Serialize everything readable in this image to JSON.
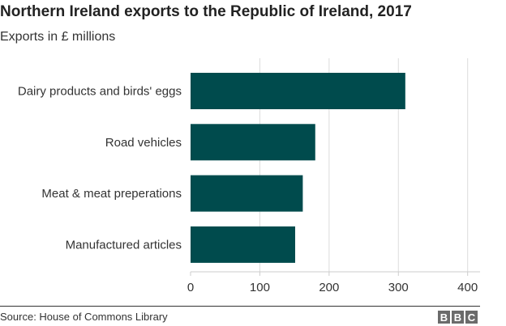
{
  "chart_data": {
    "type": "bar",
    "orientation": "horizontal",
    "title": "Northern Ireland exports to the Republic of Ireland, 2017",
    "subtitle": "Exports in £ millions",
    "categories": [
      "Dairy products and birds' eggs",
      "Road vehicles",
      "Meat & meat preperations",
      "Manufactured articles"
    ],
    "values": [
      310,
      180,
      162,
      151
    ],
    "xlim": [
      0,
      400
    ],
    "xticks": [
      "0",
      "100",
      "200",
      "300",
      "400"
    ],
    "grid": true,
    "bar_color": "#004b4d"
  },
  "footer": {
    "source": "Source: House of Commons Library",
    "logo": "BBC"
  }
}
